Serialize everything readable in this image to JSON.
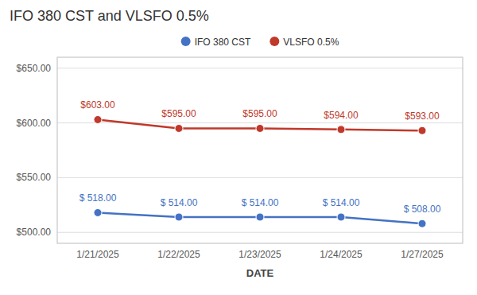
{
  "chart_data": {
    "type": "line",
    "title": "IFO 380 CST and VLSFO 0.5%",
    "xlabel": "DATE",
    "categories": [
      "1/21/2025",
      "1/22/2025",
      "1/23/2025",
      "1/24/2025",
      "1/27/2025"
    ],
    "series": [
      {
        "name": "IFO 380 CST",
        "color": "#4472C4",
        "marker": "circle",
        "values": [
          518.0,
          514.0,
          514.0,
          514.0,
          508.0
        ],
        "value_labels": [
          "$ 518.00",
          "$ 514.00",
          "$ 514.00",
          "$ 514.00",
          "$ 508.00"
        ]
      },
      {
        "name": "VLSFO 0.5%",
        "color": "#C0392B",
        "marker": "circle",
        "values": [
          603.0,
          595.0,
          595.0,
          594.0,
          593.0
        ],
        "value_labels": [
          "$603.00",
          "$595.00",
          "$595.00",
          "$594.00",
          "$593.00"
        ]
      }
    ],
    "ylim": [
      490,
      660
    ],
    "yticks": [
      {
        "value": 500,
        "label": "$500.00"
      },
      {
        "value": 550,
        "label": "$550.00"
      },
      {
        "value": 600,
        "label": "$600.00"
      },
      {
        "value": 650,
        "label": "$650.00"
      }
    ],
    "grid": true,
    "legend": "top",
    "data_labels": true
  }
}
